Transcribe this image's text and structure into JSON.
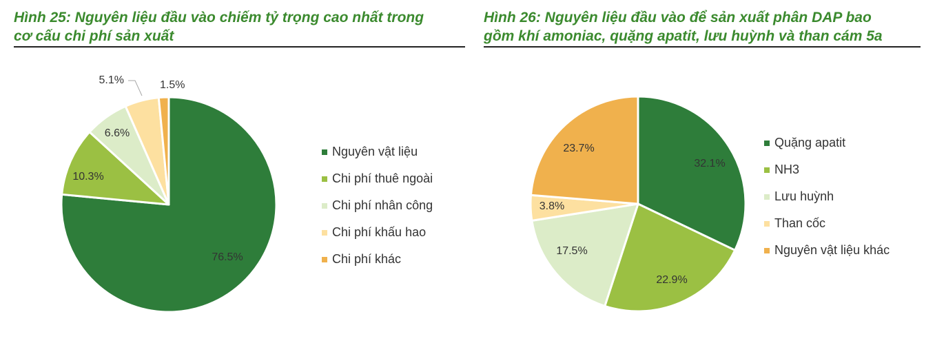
{
  "figures": [
    {
      "title_line1": "Hình 25: Nguyên liệu đầu vào chiếm tỷ trọng cao nhất trong",
      "title_line2": "cơ cấu chi phí sản xuất"
    },
    {
      "title_line1": "Hình 26: Nguyên liệu đầu vào để sản xuất phân DAP bao",
      "title_line2": "gồm khí amoniac, quặng apatit, lưu huỳnh và than cám 5a"
    }
  ],
  "chart_data": [
    {
      "type": "pie",
      "title": "Hình 25: Nguyên liệu đầu vào chiếm tỷ trọng cao nhất trong cơ cấu chi phí sản xuất",
      "start": "12 o'clock, clockwise",
      "legend_position": "right",
      "categories": [
        "Nguyên vật liệu",
        "Chi phí thuê ngoài",
        "Chi phí nhân công",
        "Chi phí khấu hao",
        "Chi phí khác"
      ],
      "values": [
        76.5,
        10.3,
        6.6,
        5.1,
        1.5
      ],
      "labels": [
        "76.5%",
        "10.3%",
        "6.6%",
        "5.1%",
        "1.5%"
      ],
      "colors": [
        "#2e7d3a",
        "#9bc043",
        "#dcecc8",
        "#fde0a0",
        "#f0b14d"
      ]
    },
    {
      "type": "pie",
      "title": "Hình 26: Nguyên liệu đầu vào để sản xuất phân DAP bao gồm khí amoniac, quặng apatit, lưu huỳnh và than cám 5a",
      "start": "12 o'clock, clockwise",
      "legend_position": "right",
      "categories": [
        "Quặng apatit",
        "NH3",
        "Lưu huỳnh",
        "Than cốc",
        "Nguyên vật liệu khác"
      ],
      "values": [
        32.1,
        22.9,
        17.5,
        3.8,
        23.7
      ],
      "labels": [
        "32.1%",
        "22.9%",
        "17.5%",
        "3.8%",
        "23.7%"
      ],
      "colors": [
        "#2e7d3a",
        "#9bc043",
        "#dcecc8",
        "#fde0a0",
        "#f0b14d"
      ]
    }
  ]
}
